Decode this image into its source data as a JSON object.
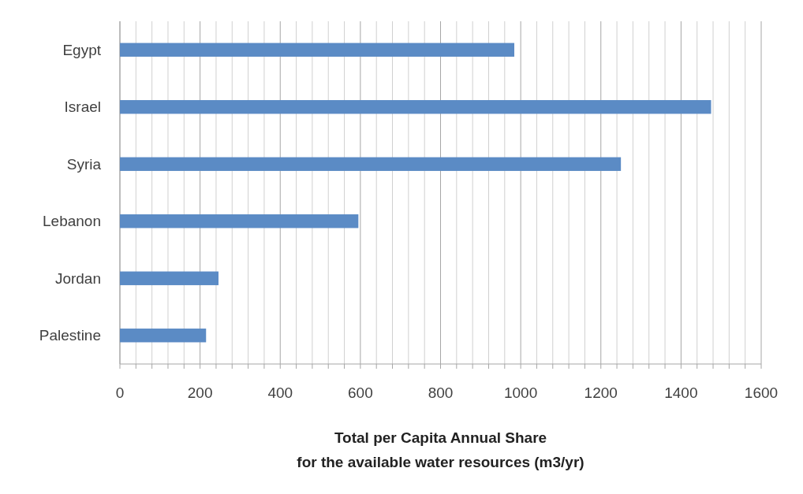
{
  "chart_data": {
    "type": "bar",
    "orientation": "horizontal",
    "xlabel": "Total per Capita Annual Share\nfor the available water resources  (m3/yr)",
    "categories": [
      "Egypt",
      "Israel",
      "Syria",
      "Lebanon",
      "Jordan",
      "Palestine"
    ],
    "values": [
      984,
      1475,
      1250,
      595,
      246,
      215
    ],
    "color": "#5b8bc5",
    "xlim": [
      0,
      1600
    ],
    "xticks": [
      0,
      {
        "value": 40,
        "label": null
      },
      {
        "value": 80,
        "label": null
      },
      {
        "value": 120,
        "label": null
      },
      {
        "value": 160,
        "label": null
      },
      200,
      {
        "value": 240,
        "label": null
      },
      {
        "value": 280,
        "label": null
      },
      {
        "value": 320,
        "label": null
      },
      {
        "value": 360,
        "label": null
      },
      400,
      {
        "value": 440,
        "label": null
      },
      {
        "value": 480,
        "label": null
      },
      {
        "value": 520,
        "label": null
      },
      {
        "value": 560,
        "label": null
      },
      600,
      {
        "value": 640,
        "label": null
      },
      {
        "value": 680,
        "label": null
      },
      {
        "value": 720,
        "label": null
      },
      {
        "value": 760,
        "label": null
      },
      800,
      {
        "value": 840,
        "label": null
      },
      {
        "value": 880,
        "label": null
      },
      {
        "value": 920,
        "label": null
      },
      {
        "value": 960,
        "label": null
      },
      1000,
      {
        "value": 1040,
        "label": null
      },
      {
        "value": 1080,
        "label": null
      },
      {
        "value": 1120,
        "label": null
      },
      {
        "value": 1160,
        "label": null
      },
      1200,
      {
        "value": 1240,
        "label": null
      },
      {
        "value": 1280,
        "label": null
      },
      {
        "value": 1320,
        "label": null
      },
      {
        "value": 1360,
        "label": null
      },
      1400,
      {
        "value": 1440,
        "label": null
      },
      {
        "value": 1480,
        "label": null
      },
      {
        "value": 1520,
        "label": null
      },
      {
        "value": 1560,
        "label": null
      },
      1600
    ],
    "grid": "x"
  }
}
